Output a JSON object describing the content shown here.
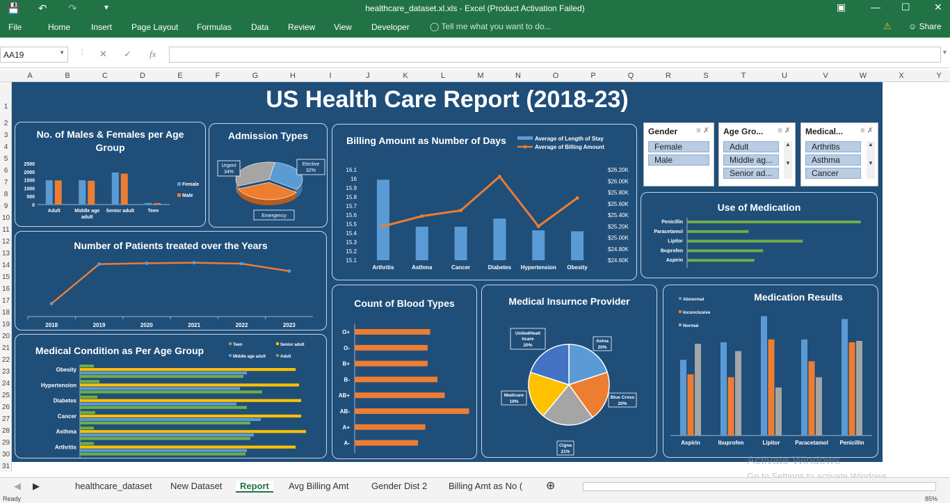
{
  "window": {
    "title": "healthcare_dataset.xl.xls - Excel (Product Activation Failed)",
    "save_icon": "save-icon",
    "undo_icon": "undo-icon",
    "redo_icon": "redo-icon"
  },
  "ribbon": {
    "tabs": [
      "File",
      "Home",
      "Insert",
      "Page Layout",
      "Formulas",
      "Data",
      "Review",
      "View",
      "Developer"
    ],
    "tell_me": "Tell me what you want to do...",
    "share": "Share"
  },
  "formula_bar": {
    "name_box": "AA19",
    "fx": "fx",
    "value": ""
  },
  "columns": [
    "A",
    "B",
    "C",
    "D",
    "E",
    "F",
    "G",
    "H",
    "I",
    "J",
    "K",
    "L",
    "M",
    "N",
    "O",
    "P",
    "Q",
    "R",
    "S",
    "T",
    "U",
    "V",
    "W",
    "X",
    "Y"
  ],
  "rows": [
    "1",
    "2",
    "3",
    "4",
    "5",
    "6",
    "7",
    "8",
    "9",
    "10",
    "11",
    "12",
    "13",
    "14",
    "15",
    "16",
    "17",
    "18",
    "19",
    "20",
    "21",
    "22",
    "23",
    "24",
    "25",
    "26",
    "27",
    "28",
    "29",
    "30",
    "31"
  ],
  "report": {
    "title": "US Health Care Report (2018-23)"
  },
  "charts": {
    "gender_age": {
      "title": "No. of Males & Females per Age Group",
      "categories": [
        "Adult",
        "Middle age adult",
        "Senior adult",
        "Teen"
      ],
      "series": [
        {
          "name": "Female",
          "values": [
            1480,
            1480,
            1950,
            100
          ],
          "color": "#5b9bd5"
        },
        {
          "name": "Male",
          "values": [
            1470,
            1450,
            1880,
            90
          ],
          "color": "#ed7d31"
        }
      ],
      "y_ticks": [
        "2500",
        "2000",
        "1500",
        "1000",
        "500",
        "0"
      ],
      "ylim": [
        0,
        2500
      ]
    },
    "admission": {
      "title": "Admission Types",
      "slices": [
        {
          "label": "Elective",
          "pct": "32%",
          "value": 32,
          "color": "#5b9bd5"
        },
        {
          "label": "Emergency",
          "pct": "34%",
          "value": 34,
          "color": "#ed7d31"
        },
        {
          "label": "Urgent",
          "pct": "34%",
          "value": 34,
          "color": "#a5a5a5"
        }
      ]
    },
    "billing_days": {
      "title": "Billing Amount as Number of Days",
      "legend": [
        "Average of Length of Stay",
        "Average of Billing Amount"
      ],
      "categories": [
        "Arthritis",
        "Asthma",
        "Cancer",
        "Diabetes",
        "Hypertension",
        "Obesity"
      ],
      "length_of_stay": [
        15.99,
        15.47,
        15.47,
        15.56,
        15.43,
        15.42
      ],
      "billing_amount": [
        25200,
        25380,
        25480,
        26080,
        25200,
        25700
      ],
      "left_ticks": [
        "16.1",
        "16",
        "15.9",
        "15.8",
        "15.7",
        "15.6",
        "15.5",
        "15.4",
        "15.3",
        "15.2",
        "15.1"
      ],
      "right_ticks": [
        "$26.20K",
        "$26.00K",
        "$25.80K",
        "$25.60K",
        "$25.40K",
        "$25.20K",
        "$25.00K",
        "$24.80K",
        "$24.60K"
      ],
      "left_lim": [
        15.1,
        16.1
      ],
      "right_lim": [
        24600,
        26200
      ]
    },
    "patients_years": {
      "title": "Number of Patients treated over the Years",
      "years": [
        "2018",
        "2019",
        "2020",
        "2021",
        "2022",
        "2023"
      ],
      "values": [
        1000,
        9500,
        9700,
        9800,
        9600,
        8000
      ],
      "ylim": [
        0,
        12000
      ]
    },
    "condition_age": {
      "title": "Medical Condition as Per Age Group",
      "legend": [
        "Teen",
        "Senior adult",
        "Middle age adult",
        "Adult"
      ],
      "categories": [
        "Obesity",
        "Hypertension",
        "Diabetes",
        "Cancer",
        "Asthma",
        "Arthritis"
      ],
      "series": [
        {
          "name": "Teen",
          "values": [
            20,
            28,
            25,
            22,
            20,
            20
          ],
          "color": "#70ad47"
        },
        {
          "name": "Senior adult",
          "values": [
            310,
            315,
            318,
            318,
            325,
            310
          ],
          "color": "#ffc000"
        },
        {
          "name": "Middle age adult",
          "values": [
            240,
            230,
            225,
            260,
            250,
            240
          ],
          "color": "#5b9bd5"
        },
        {
          "name": "Adult",
          "values": [
            235,
            262,
            240,
            245,
            245,
            238
          ],
          "color": "#70ad47"
        }
      ],
      "xlim": [
        0,
        330
      ]
    },
    "blood_types": {
      "title": "Count of Blood Types",
      "categories": [
        "O+",
        "O-",
        "B+",
        "B-",
        "AB+",
        "AB-",
        "A+",
        "A-"
      ],
      "values": [
        155,
        150,
        150,
        170,
        185,
        235,
        145,
        130
      ],
      "xlim": [
        0,
        250
      ],
      "color": "#ed7d31"
    },
    "insurance": {
      "title": "Medical Insurnce Provider",
      "slices": [
        {
          "label": "Aetna",
          "pct": "20%",
          "value": 20,
          "color": "#5b9bd5"
        },
        {
          "label": "Blue Cross",
          "pct": "20%",
          "value": 20,
          "color": "#ed7d31"
        },
        {
          "label": "Cigna",
          "pct": "21%",
          "value": 21,
          "color": "#a5a5a5"
        },
        {
          "label": "Medicare",
          "pct": "19%",
          "value": 19,
          "color": "#ffc000"
        },
        {
          "label": "UnitedHealthcare",
          "pct": "20%",
          "value": 20,
          "color": "#4472c4"
        }
      ]
    },
    "medication_use": {
      "title": "Use of Medication",
      "categories": [
        "Penicillin",
        "Paracetamol",
        "Lipitor",
        "Ibuprofen",
        "Aspirin"
      ],
      "values": [
        240,
        85,
        160,
        105,
        93
      ],
      "xlim": [
        0,
        250
      ],
      "color": "#70ad47"
    },
    "medication_results": {
      "title": "Medication Results",
      "legend": [
        "Abnormal",
        "Inconclusive",
        "Normal"
      ],
      "categories": [
        "Aspirin",
        "Ibuprofen",
        "Lipitor",
        "Paracetamol",
        "Penicillin"
      ],
      "series": [
        {
          "name": "Abnormal",
          "values": [
            260,
            320,
            410,
            330,
            400
          ],
          "color": "#5b9bd5"
        },
        {
          "name": "Inconclusive",
          "values": [
            210,
            200,
            330,
            255,
            320
          ],
          "color": "#ed7d31"
        },
        {
          "name": "Normal",
          "values": [
            315,
            290,
            165,
            200,
            325
          ],
          "color": "#a5a5a5"
        }
      ],
      "ylim": [
        0,
        430
      ]
    }
  },
  "slicers": [
    {
      "header": "Gender",
      "items": [
        "Female",
        "Male"
      ]
    },
    {
      "header": "Age Gro...",
      "items": [
        "Adult",
        "Middle ag...",
        "Senior ad..."
      ]
    },
    {
      "header": "Medical...",
      "items": [
        "Arthritis",
        "Asthma",
        "Cancer"
      ]
    }
  ],
  "sheet_tabs": [
    "healthcare_dataset",
    "New Dataset",
    "Report",
    "Avg Billing Amt",
    "Gender Dist 2",
    "Billing Amt as No ("
  ],
  "active_sheet": "Report",
  "status": {
    "left": "Ready",
    "zoom": "85%"
  },
  "watermark": {
    "line1": "Activate Windows",
    "line2": "Go to Settings to activate Windows."
  }
}
